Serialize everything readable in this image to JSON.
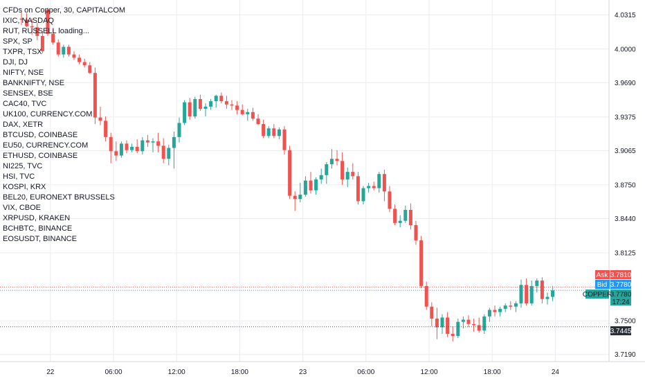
{
  "title": "CFDs on Copper, 30, CAPITALCOM",
  "symbols": [
    "IXIC, NASDAQ",
    "RUT, RUSSELL loading...",
    "SPX, SP",
    "TXPR, TSX",
    "DJI, DJ",
    "NIFTY, NSE",
    "BANKNIFTY, NSE",
    "SENSEX, BSE",
    "CAC40, TVC",
    "UK100, CURRENCY.COM",
    "DAX, XETR",
    "BTCUSD, COINBASE",
    "EU50, CURRENCY.COM",
    "ETHUSD, COINBASE",
    "NI225, TVC",
    "HSI, TVC",
    "KOSPI, KRX",
    "BEL20, EURONEXT BRUSSELS",
    "VIX, CBOE",
    "XRPUSD, KRAKEN",
    "BCHBTC, BINANCE",
    "EOSUSDT, BINANCE"
  ],
  "colors": {
    "up": "#26a69a",
    "down": "#ef5350",
    "ask": "#ef5350",
    "bid": "#2196f3",
    "copper": "#26a69a",
    "grid": "#e9ecf1",
    "axis_text": "#131722",
    "dotted_line": "#4a4a4a"
  },
  "price_tags": {
    "ask": {
      "label": "Ask",
      "value": "3.7810"
    },
    "bid": {
      "label": "Bid",
      "value": "3.7780"
    },
    "copper": {
      "label": "COPPER",
      "value": "3.7780",
      "countdown": "17:24"
    },
    "level": {
      "value": "3.7445"
    }
  },
  "chart_data": {
    "type": "candlestick",
    "title": "CFDs on Copper, 30, CAPITALCOM",
    "y_ticks": [
      "4.0315",
      "4.0000",
      "3.9690",
      "3.9375",
      "3.9065",
      "3.8750",
      "3.8440",
      "3.8125",
      "3.7500",
      "3.7190"
    ],
    "x_ticks": [
      {
        "label": "22",
        "bar": 5.5
      },
      {
        "label": "06:00",
        "bar": 17.5
      },
      {
        "label": "12:00",
        "bar": 29.5
      },
      {
        "label": "18:00",
        "bar": 41.5
      },
      {
        "label": "23",
        "bar": 53.5
      },
      {
        "label": "06:00",
        "bar": 65.5
      },
      {
        "label": "12:00",
        "bar": 77.5
      },
      {
        "label": "18:00",
        "bar": 89.5
      },
      {
        "label": "24",
        "bar": 101.5
      }
    ],
    "ylim": [
      3.715,
      4.04
    ],
    "grid": true,
    "bars_ohlc": [
      [
        4.028,
        4.034,
        4.022,
        4.027
      ],
      [
        4.027,
        4.033,
        4.02,
        4.021
      ],
      [
        4.021,
        4.028,
        4.013,
        4.02
      ],
      [
        4.02,
        4.024,
        4.008,
        4.012
      ],
      [
        4.012,
        4.016,
        3.996,
        3.998
      ],
      [
        4.036,
        4.038,
        4.012,
        4.014
      ],
      [
        4.014,
        4.018,
        4.004,
        4.006
      ],
      [
        4.006,
        4.009,
        3.993,
        3.995
      ],
      [
        3.995,
        4.004,
        3.992,
        4.002
      ],
      [
        4.002,
        4.004,
        3.993,
        3.995
      ],
      [
        3.995,
        3.998,
        3.99,
        3.992
      ],
      [
        3.992,
        3.995,
        3.986,
        3.988
      ],
      [
        3.988,
        3.991,
        3.983,
        3.985
      ],
      [
        3.985,
        3.988,
        3.977,
        3.978
      ],
      [
        3.978,
        3.983,
        3.931,
        3.937
      ],
      [
        3.937,
        3.947,
        3.93,
        3.934
      ],
      [
        3.934,
        3.938,
        3.915,
        3.919
      ],
      [
        3.919,
        3.923,
        3.895,
        3.906
      ],
      [
        3.906,
        3.915,
        3.897,
        3.902
      ],
      [
        3.902,
        3.915,
        3.9,
        3.913
      ],
      [
        3.913,
        3.916,
        3.904,
        3.907
      ],
      [
        3.907,
        3.913,
        3.905,
        3.91
      ],
      [
        3.91,
        3.917,
        3.904,
        3.906
      ],
      [
        3.906,
        3.919,
        3.903,
        3.916
      ],
      [
        3.916,
        3.921,
        3.91,
        3.914
      ],
      [
        3.914,
        3.918,
        3.905,
        3.915
      ],
      [
        3.915,
        3.923,
        3.905,
        3.911
      ],
      [
        3.911,
        3.918,
        3.895,
        3.899
      ],
      [
        3.899,
        3.912,
        3.893,
        3.909
      ],
      [
        3.909,
        3.924,
        3.89,
        3.919
      ],
      [
        3.919,
        3.937,
        3.914,
        3.932
      ],
      [
        3.932,
        3.953,
        3.93,
        3.951
      ],
      [
        3.951,
        3.955,
        3.935,
        3.938
      ],
      [
        3.938,
        3.956,
        3.936,
        3.954
      ],
      [
        3.954,
        3.958,
        3.943,
        3.945
      ],
      [
        3.945,
        3.95,
        3.938,
        3.947
      ],
      [
        3.947,
        3.954,
        3.944,
        3.952
      ],
      [
        3.952,
        3.958,
        3.946,
        3.957
      ],
      [
        3.957,
        3.96,
        3.95,
        3.952
      ],
      [
        3.952,
        3.957,
        3.945,
        3.949
      ],
      [
        3.949,
        3.953,
        3.944,
        3.948
      ],
      [
        3.948,
        3.952,
        3.94,
        3.944
      ],
      [
        3.944,
        3.949,
        3.939,
        3.94
      ],
      [
        3.94,
        3.945,
        3.934,
        3.942
      ],
      [
        3.942,
        3.946,
        3.934,
        3.936
      ],
      [
        3.936,
        3.94,
        3.93,
        3.931
      ],
      [
        3.931,
        3.935,
        3.918,
        3.92
      ],
      [
        3.92,
        3.929,
        3.918,
        3.927
      ],
      [
        3.927,
        3.931,
        3.918,
        3.92
      ],
      [
        3.92,
        3.928,
        3.917,
        3.926
      ],
      [
        3.926,
        3.929,
        3.903,
        3.907
      ],
      [
        3.907,
        3.911,
        3.862,
        3.865
      ],
      [
        3.865,
        3.869,
        3.851,
        3.862
      ],
      [
        3.862,
        3.877,
        3.859,
        3.866
      ],
      [
        3.866,
        3.883,
        3.864,
        3.879
      ],
      [
        3.879,
        3.887,
        3.867,
        3.87
      ],
      [
        3.87,
        3.882,
        3.866,
        3.88
      ],
      [
        3.88,
        3.89,
        3.876,
        3.884
      ],
      [
        3.884,
        3.896,
        3.876,
        3.894
      ],
      [
        3.894,
        3.908,
        3.89,
        3.899
      ],
      [
        3.899,
        3.907,
        3.893,
        3.897
      ],
      [
        3.897,
        3.905,
        3.875,
        3.88
      ],
      [
        3.88,
        3.891,
        3.873,
        3.887
      ],
      [
        3.887,
        3.895,
        3.88,
        3.883
      ],
      [
        3.883,
        3.887,
        3.857,
        3.86
      ],
      [
        3.86,
        3.874,
        3.857,
        3.872
      ],
      [
        3.872,
        3.877,
        3.868,
        3.874
      ],
      [
        3.874,
        3.878,
        3.87,
        3.872
      ],
      [
        3.872,
        3.887,
        3.868,
        3.885
      ],
      [
        3.885,
        3.889,
        3.86,
        3.869
      ],
      [
        3.869,
        3.874,
        3.85,
        3.853
      ],
      [
        3.853,
        3.857,
        3.838,
        3.84
      ],
      [
        3.84,
        3.847,
        3.836,
        3.842
      ],
      [
        3.842,
        3.856,
        3.84,
        3.852
      ],
      [
        3.852,
        3.858,
        3.834,
        3.838
      ],
      [
        3.838,
        3.842,
        3.82,
        3.824
      ],
      [
        3.824,
        3.828,
        3.78,
        3.782
      ],
      [
        3.782,
        3.786,
        3.76,
        3.763
      ],
      [
        3.763,
        3.767,
        3.745,
        3.752
      ],
      [
        3.752,
        3.762,
        3.733,
        3.744
      ],
      [
        3.744,
        3.756,
        3.738,
        3.753
      ],
      [
        3.753,
        3.758,
        3.735,
        3.738
      ],
      [
        3.738,
        3.745,
        3.731,
        3.736
      ],
      [
        3.736,
        3.752,
        3.734,
        3.749
      ],
      [
        3.749,
        3.754,
        3.743,
        3.751
      ],
      [
        3.751,
        3.755,
        3.744,
        3.747
      ],
      [
        3.747,
        3.752,
        3.74,
        3.746
      ],
      [
        3.746,
        3.753,
        3.739,
        3.741
      ],
      [
        3.741,
        3.756,
        3.738,
        3.754
      ],
      [
        3.754,
        3.762,
        3.749,
        3.76
      ],
      [
        3.76,
        3.764,
        3.754,
        3.758
      ],
      [
        3.758,
        3.763,
        3.754,
        3.761
      ],
      [
        3.761,
        3.766,
        3.758,
        3.764
      ],
      [
        3.764,
        3.768,
        3.76,
        3.763
      ],
      [
        3.763,
        3.768,
        3.758,
        3.766
      ],
      [
        3.766,
        3.788,
        3.762,
        3.783
      ],
      [
        3.783,
        3.789,
        3.764,
        3.766
      ],
      [
        3.766,
        3.787,
        3.764,
        3.782
      ],
      [
        3.782,
        3.789,
        3.776,
        3.787
      ],
      [
        3.787,
        3.79,
        3.766,
        3.77
      ],
      [
        3.77,
        3.776,
        3.765,
        3.772
      ],
      [
        3.772,
        3.782,
        3.768,
        3.778
      ]
    ]
  }
}
